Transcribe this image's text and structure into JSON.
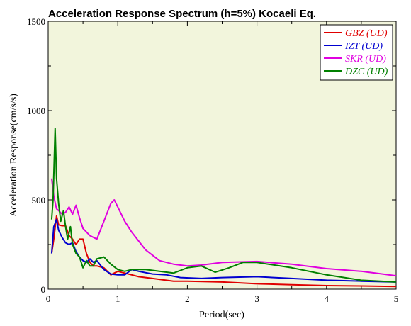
{
  "chart_data": {
    "type": "line",
    "title": "Acceleration Response Spectrum (h=5%) Kocaeli Eq.",
    "xlabel": "Period(sec)",
    "ylabel": "Acceleration Response(cm/s/s)",
    "xlim": [
      0,
      5
    ],
    "ylim": [
      0,
      1500
    ],
    "xticks": [
      "0",
      "1",
      "2",
      "3",
      "4",
      "5"
    ],
    "yticks": [
      "0",
      "500",
      "1000",
      "1500"
    ],
    "legend_position": "top-right",
    "background_color": "#f2f5dc",
    "series": [
      {
        "name": "GBZ (UD)",
        "color": "#e00000",
        "x": [
          0.05,
          0.08,
          0.12,
          0.15,
          0.2,
          0.25,
          0.3,
          0.35,
          0.4,
          0.45,
          0.5,
          0.55,
          0.6,
          0.65,
          0.7,
          0.8,
          0.9,
          1.0,
          1.1,
          1.2,
          1.3,
          1.5,
          1.8,
          2.0,
          2.5,
          3.0,
          3.5,
          4.0,
          4.5,
          5.0
        ],
        "y": [
          200,
          280,
          410,
          360,
          355,
          355,
          300,
          280,
          250,
          280,
          280,
          200,
          150,
          130,
          130,
          120,
          80,
          100,
          90,
          80,
          70,
          60,
          45,
          45,
          40,
          30,
          25,
          20,
          18,
          15
        ]
      },
      {
        "name": "IZT (UD)",
        "color": "#0000d0",
        "x": [
          0.05,
          0.08,
          0.12,
          0.15,
          0.2,
          0.25,
          0.3,
          0.35,
          0.4,
          0.45,
          0.5,
          0.55,
          0.6,
          0.65,
          0.7,
          0.8,
          0.9,
          1.0,
          1.1,
          1.2,
          1.3,
          1.5,
          1.7,
          1.9,
          2.2,
          2.5,
          3.0,
          3.5,
          4.0,
          4.5,
          5.0
        ],
        "y": [
          200,
          350,
          390,
          330,
          290,
          260,
          250,
          260,
          210,
          180,
          160,
          150,
          170,
          150,
          160,
          110,
          85,
          80,
          80,
          110,
          100,
          85,
          80,
          65,
          60,
          65,
          70,
          60,
          50,
          45,
          40
        ]
      },
      {
        "name": "SKR (UD)",
        "color": "#e000e0",
        "x": [
          0.05,
          0.08,
          0.12,
          0.15,
          0.2,
          0.25,
          0.3,
          0.35,
          0.4,
          0.45,
          0.5,
          0.6,
          0.7,
          0.8,
          0.9,
          0.95,
          1.0,
          1.1,
          1.2,
          1.4,
          1.6,
          1.8,
          2.0,
          2.2,
          2.5,
          3.0,
          3.5,
          4.0,
          4.5,
          5.0
        ],
        "y": [
          620,
          520,
          450,
          440,
          420,
          430,
          460,
          420,
          470,
          400,
          340,
          300,
          280,
          380,
          480,
          500,
          460,
          380,
          320,
          220,
          160,
          140,
          130,
          135,
          150,
          155,
          140,
          115,
          100,
          75
        ]
      },
      {
        "name": "DZC (UD)",
        "color": "#008000",
        "x": [
          0.05,
          0.07,
          0.1,
          0.12,
          0.15,
          0.18,
          0.22,
          0.25,
          0.28,
          0.32,
          0.35,
          0.4,
          0.45,
          0.5,
          0.55,
          0.6,
          0.65,
          0.7,
          0.8,
          0.9,
          1.0,
          1.1,
          1.2,
          1.4,
          1.6,
          1.8,
          2.0,
          2.2,
          2.4,
          2.6,
          2.8,
          3.0,
          3.5,
          4.0,
          4.5,
          5.0
        ],
        "y": [
          390,
          500,
          900,
          620,
          480,
          380,
          440,
          350,
          280,
          350,
          250,
          200,
          180,
          120,
          160,
          130,
          130,
          170,
          180,
          140,
          110,
          100,
          110,
          110,
          100,
          90,
          120,
          130,
          95,
          120,
          150,
          150,
          120,
          80,
          50,
          40
        ]
      }
    ]
  }
}
